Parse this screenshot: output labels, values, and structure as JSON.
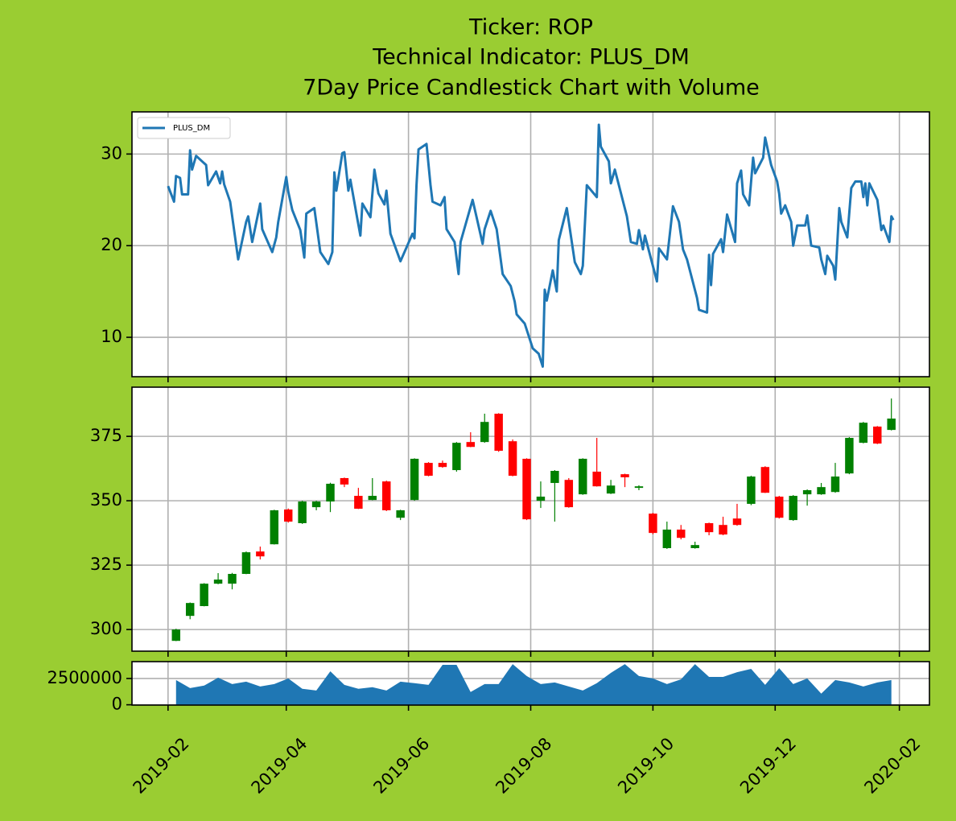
{
  "title": [
    "Ticker: ROP",
    "Technical Indicator: PLUS_DM",
    "7Day Price Candlestick Chart with Volume"
  ],
  "chart_data": [
    {
      "type": "line",
      "grid": true,
      "legend": "upper left",
      "xlim": [
        "2019-01-14",
        "2020-02-16"
      ],
      "xticks": [
        "2019-02-01",
        "2019-04-01",
        "2019-06-01",
        "2019-08-01",
        "2019-10-01",
        "2019-12-01",
        "2020-02-01"
      ],
      "ylim": [
        5.7,
        34.6
      ],
      "yticks": [
        10,
        20,
        30
      ],
      "series": [
        {
          "name": "PLUS_DM",
          "color": "#1f77b4",
          "x": [
            "2019-02-01",
            "2019-02-04",
            "2019-02-05",
            "2019-02-07",
            "2019-02-08",
            "2019-02-11",
            "2019-02-12",
            "2019-02-13",
            "2019-02-15",
            "2019-02-20",
            "2019-02-21",
            "2019-02-25",
            "2019-02-27",
            "2019-02-28",
            "2019-03-01",
            "2019-03-04",
            "2019-03-08",
            "2019-03-12",
            "2019-03-13",
            "2019-03-15",
            "2019-03-19",
            "2019-03-20",
            "2019-03-25",
            "2019-03-27",
            "2019-03-28",
            "2019-04-01",
            "2019-04-02",
            "2019-04-04",
            "2019-04-08",
            "2019-04-10",
            "2019-04-11",
            "2019-04-15",
            "2019-04-18",
            "2019-04-22",
            "2019-04-24",
            "2019-04-25",
            "2019-04-26",
            "2019-04-29",
            "2019-04-30",
            "2019-05-02",
            "2019-05-03",
            "2019-05-06",
            "2019-05-08",
            "2019-05-09",
            "2019-05-13",
            "2019-05-15",
            "2019-05-17",
            "2019-05-20",
            "2019-05-21",
            "2019-05-23",
            "2019-05-28",
            "2019-06-03",
            "2019-06-04",
            "2019-06-05",
            "2019-06-06",
            "2019-06-10",
            "2019-06-12",
            "2019-06-13",
            "2019-06-17",
            "2019-06-19",
            "2019-06-20",
            "2019-06-24",
            "2019-06-26",
            "2019-06-27",
            "2019-07-03",
            "2019-07-05",
            "2019-07-08",
            "2019-07-09",
            "2019-07-12",
            "2019-07-15",
            "2019-07-18",
            "2019-07-22",
            "2019-07-24",
            "2019-07-25",
            "2019-07-29",
            "2019-08-02",
            "2019-08-05",
            "2019-08-07",
            "2019-08-08",
            "2019-08-09",
            "2019-08-12",
            "2019-08-14",
            "2019-08-15",
            "2019-08-19",
            "2019-08-23",
            "2019-08-26",
            "2019-08-27",
            "2019-08-29",
            "2019-09-03",
            "2019-09-04",
            "2019-09-05",
            "2019-09-09",
            "2019-09-10",
            "2019-09-12",
            "2019-09-18",
            "2019-09-20",
            "2019-09-23",
            "2019-09-24",
            "2019-09-26",
            "2019-09-27",
            "2019-10-03",
            "2019-10-04",
            "2019-10-08",
            "2019-10-11",
            "2019-10-14",
            "2019-10-16",
            "2019-10-18",
            "2019-10-23",
            "2019-10-24",
            "2019-10-28",
            "2019-10-29",
            "2019-10-30",
            "2019-10-31",
            "2019-11-04",
            "2019-11-05",
            "2019-11-07",
            "2019-11-11",
            "2019-11-12",
            "2019-11-14",
            "2019-11-15",
            "2019-11-18",
            "2019-11-20",
            "2019-11-21",
            "2019-11-25",
            "2019-11-26",
            "2019-11-29",
            "2019-12-02",
            "2019-12-03",
            "2019-12-04",
            "2019-12-06",
            "2019-12-09",
            "2019-12-10",
            "2019-12-12",
            "2019-12-16",
            "2019-12-17",
            "2019-12-19",
            "2019-12-23",
            "2019-12-24",
            "2019-12-26",
            "2019-12-27",
            "2019-12-30",
            "2019-12-31",
            "2020-01-02",
            "2020-01-03",
            "2020-01-06",
            "2020-01-08",
            "2020-01-10",
            "2020-01-13",
            "2020-01-14",
            "2020-01-15",
            "2020-01-16",
            "2020-01-17",
            "2020-01-21",
            "2020-01-23",
            "2020-01-24",
            "2020-01-27",
            "2020-01-28",
            "2020-01-29"
          ],
          "values": [
            26.5,
            24.8,
            27.6,
            27.4,
            25.6,
            25.6,
            30.4,
            28.3,
            29.8,
            28.8,
            26.6,
            28.1,
            26.8,
            28.1,
            26.7,
            24.8,
            18.5,
            22.6,
            23.2,
            20.4,
            24.6,
            21.8,
            19.3,
            20.9,
            22.6,
            27.5,
            25.9,
            23.9,
            21.7,
            18.7,
            23.5,
            24.1,
            19.3,
            18.0,
            19.3,
            28.0,
            26.0,
            30.1,
            30.2,
            26.0,
            27.2,
            23.5,
            21.1,
            24.6,
            23.1,
            28.3,
            25.7,
            24.5,
            26.0,
            21.3,
            18.3,
            21.3,
            20.8,
            26.6,
            30.5,
            31.1,
            26.6,
            24.8,
            24.4,
            25.3,
            21.8,
            20.4,
            16.9,
            20.4,
            25.0,
            23.1,
            20.2,
            21.8,
            23.8,
            21.8,
            16.9,
            15.6,
            13.9,
            12.5,
            11.5,
            8.8,
            8.2,
            6.8,
            15.2,
            14.0,
            17.3,
            15.0,
            20.6,
            24.1,
            18.2,
            16.9,
            17.8,
            26.6,
            25.3,
            33.2,
            30.8,
            29.2,
            26.8,
            28.3,
            23.2,
            20.4,
            20.2,
            21.7,
            19.6,
            21.1,
            16.1,
            19.7,
            18.5,
            24.3,
            22.6,
            19.6,
            18.5,
            14.3,
            13.0,
            12.7,
            19.0,
            15.7,
            19.1,
            20.7,
            19.3,
            23.4,
            20.4,
            26.8,
            28.2,
            25.6,
            24.4,
            29.6,
            27.9,
            29.6,
            31.8,
            28.8,
            27.0,
            25.7,
            23.5,
            24.4,
            22.6,
            20.0,
            22.2,
            22.2,
            23.3,
            20.0,
            19.8,
            18.5,
            16.9,
            18.9,
            17.8,
            16.3,
            24.1,
            22.6,
            20.9,
            26.3,
            27.0,
            27.0,
            25.3,
            26.8,
            24.4,
            26.8,
            25.0,
            21.7,
            22.2,
            20.4,
            23.2,
            22.8
          ]
        }
      ]
    },
    {
      "type": "candlestick",
      "grid": true,
      "up_color": "green",
      "down_color": "red",
      "xlim": [
        "2019-01-14",
        "2020-02-16"
      ],
      "xticks": [
        "2019-02-01",
        "2019-04-01",
        "2019-06-01",
        "2019-08-01",
        "2019-10-01",
        "2019-12-01",
        "2020-02-01"
      ],
      "ylim": [
        291.6,
        394.1
      ],
      "yticks": [
        300,
        325,
        350,
        375
      ],
      "x": [
        "2019-02-05",
        "2019-02-12",
        "2019-02-19",
        "2019-02-26",
        "2019-03-05",
        "2019-03-12",
        "2019-03-19",
        "2019-03-26",
        "2019-04-02",
        "2019-04-09",
        "2019-04-16",
        "2019-04-23",
        "2019-04-30",
        "2019-05-07",
        "2019-05-14",
        "2019-05-21",
        "2019-05-28",
        "2019-06-04",
        "2019-06-11",
        "2019-06-18",
        "2019-06-25",
        "2019-07-02",
        "2019-07-09",
        "2019-07-16",
        "2019-07-23",
        "2019-07-30",
        "2019-08-06",
        "2019-08-13",
        "2019-08-20",
        "2019-08-27",
        "2019-09-03",
        "2019-09-10",
        "2019-09-17",
        "2019-09-24",
        "2019-10-01",
        "2019-10-08",
        "2019-10-15",
        "2019-10-22",
        "2019-10-29",
        "2019-11-05",
        "2019-11-12",
        "2019-11-19",
        "2019-11-26",
        "2019-12-03",
        "2019-12-10",
        "2019-12-17",
        "2019-12-24",
        "2019-12-31",
        "2020-01-07",
        "2020-01-14",
        "2020-01-21",
        "2020-01-28"
      ],
      "open": [
        295.6,
        305.3,
        309.1,
        317.8,
        317.8,
        321.6,
        330.3,
        333.1,
        346.6,
        341.3,
        347.5,
        349.7,
        358.8,
        351.9,
        350.3,
        357.5,
        343.4,
        350.3,
        364.7,
        364.7,
        361.9,
        372.8,
        372.8,
        383.8,
        373.1,
        366.3,
        350.0,
        356.9,
        358.1,
        352.5,
        361.3,
        352.8,
        360.3,
        355.0,
        345.0,
        331.6,
        338.8,
        331.6,
        341.3,
        340.6,
        343.1,
        348.8,
        363.1,
        351.6,
        342.5,
        352.5,
        352.5,
        353.4,
        360.6,
        372.5,
        378.8,
        377.5
      ],
      "high": [
        300.3,
        310.5,
        318.0,
        321.9,
        322.0,
        330.3,
        332.2,
        346.5,
        347.0,
        350.0,
        350.0,
        357.0,
        359.0,
        355.0,
        358.8,
        357.8,
        346.5,
        366.5,
        365.0,
        365.6,
        372.8,
        376.6,
        383.8,
        384.0,
        373.8,
        366.5,
        357.5,
        361.9,
        358.8,
        366.5,
        374.4,
        358.1,
        360.5,
        356.0,
        345.3,
        341.9,
        340.6,
        334.1,
        341.5,
        343.8,
        348.8,
        359.7,
        363.4,
        351.9,
        352.2,
        354.4,
        356.9,
        364.7,
        374.7,
        380.6,
        379.0,
        389.7
      ],
      "low": [
        295.5,
        304.0,
        309.0,
        317.6,
        315.6,
        321.5,
        327.2,
        333.0,
        341.5,
        341.0,
        346.3,
        345.6,
        355.3,
        346.8,
        350.2,
        346.0,
        342.5,
        350.0,
        359.5,
        362.8,
        361.3,
        370.8,
        372.5,
        369.0,
        359.5,
        342.5,
        347.2,
        341.9,
        347.3,
        352.3,
        355.5,
        352.6,
        355.3,
        354.1,
        337.0,
        331.3,
        335.0,
        331.4,
        336.6,
        336.6,
        340.3,
        348.3,
        353.0,
        343.1,
        342.2,
        348.1,
        352.3,
        353.1,
        360.3,
        372.3,
        372.0,
        377.3
      ],
      "close": [
        300.0,
        310.3,
        317.8,
        319.4,
        321.6,
        330.0,
        328.4,
        346.3,
        341.9,
        349.7,
        349.7,
        356.6,
        356.3,
        346.9,
        351.9,
        346.3,
        346.3,
        366.3,
        359.7,
        363.1,
        372.5,
        370.9,
        380.6,
        369.4,
        359.7,
        342.8,
        351.6,
        361.6,
        347.5,
        366.3,
        355.6,
        355.9,
        359.1,
        355.6,
        337.5,
        338.8,
        335.6,
        332.8,
        337.8,
        336.9,
        340.6,
        359.4,
        353.1,
        343.4,
        351.9,
        354.1,
        355.3,
        359.4,
        374.4,
        380.3,
        372.2,
        381.9
      ]
    },
    {
      "type": "area",
      "grid": true,
      "color": "#1f77b4",
      "xlim": [
        "2019-01-14",
        "2020-02-16"
      ],
      "xticks": [
        {
          "value": "2019-02-01",
          "label": "2019-02"
        },
        {
          "value": "2019-04-01",
          "label": "2019-04"
        },
        {
          "value": "2019-06-01",
          "label": "2019-06"
        },
        {
          "value": "2019-08-01",
          "label": "2019-08"
        },
        {
          "value": "2019-10-01",
          "label": "2019-10"
        },
        {
          "value": "2019-12-01",
          "label": "2019-12"
        },
        {
          "value": "2020-02-01",
          "label": "2020-02"
        }
      ],
      "ylim": [
        -30000,
        4100000
      ],
      "yticks": [
        0,
        2500000
      ],
      "x": [
        "2019-02-05",
        "2019-02-12",
        "2019-02-19",
        "2019-02-26",
        "2019-03-05",
        "2019-03-12",
        "2019-03-19",
        "2019-03-26",
        "2019-04-02",
        "2019-04-09",
        "2019-04-16",
        "2019-04-23",
        "2019-04-30",
        "2019-05-07",
        "2019-05-14",
        "2019-05-21",
        "2019-05-28",
        "2019-06-04",
        "2019-06-11",
        "2019-06-18",
        "2019-06-25",
        "2019-07-02",
        "2019-07-09",
        "2019-07-16",
        "2019-07-23",
        "2019-07-30",
        "2019-08-06",
        "2019-08-13",
        "2019-08-20",
        "2019-08-27",
        "2019-09-03",
        "2019-09-10",
        "2019-09-17",
        "2019-09-24",
        "2019-10-01",
        "2019-10-08",
        "2019-10-15",
        "2019-10-22",
        "2019-10-29",
        "2019-11-05",
        "2019-11-12",
        "2019-11-19",
        "2019-11-26",
        "2019-12-03",
        "2019-12-10",
        "2019-12-17",
        "2019-12-24",
        "2019-12-31",
        "2020-01-07",
        "2020-01-14",
        "2020-01-21",
        "2020-01-28"
      ],
      "values": [
        2350000,
        1590000,
        1820000,
        2580000,
        1970000,
        2200000,
        1740000,
        1970000,
        2500000,
        1520000,
        1360000,
        3180000,
        1890000,
        1520000,
        1670000,
        1360000,
        2200000,
        2050000,
        1890000,
        3790000,
        3790000,
        1210000,
        1970000,
        1970000,
        3860000,
        2730000,
        1970000,
        2120000,
        1740000,
        1360000,
        2050000,
        3030000,
        3860000,
        2730000,
        2500000,
        1970000,
        2420000,
        3860000,
        2650000,
        2650000,
        3100000,
        3410000,
        1890000,
        3480000,
        1970000,
        2500000,
        1060000,
        2350000,
        2120000,
        1740000,
        2120000,
        2350000
      ]
    }
  ]
}
